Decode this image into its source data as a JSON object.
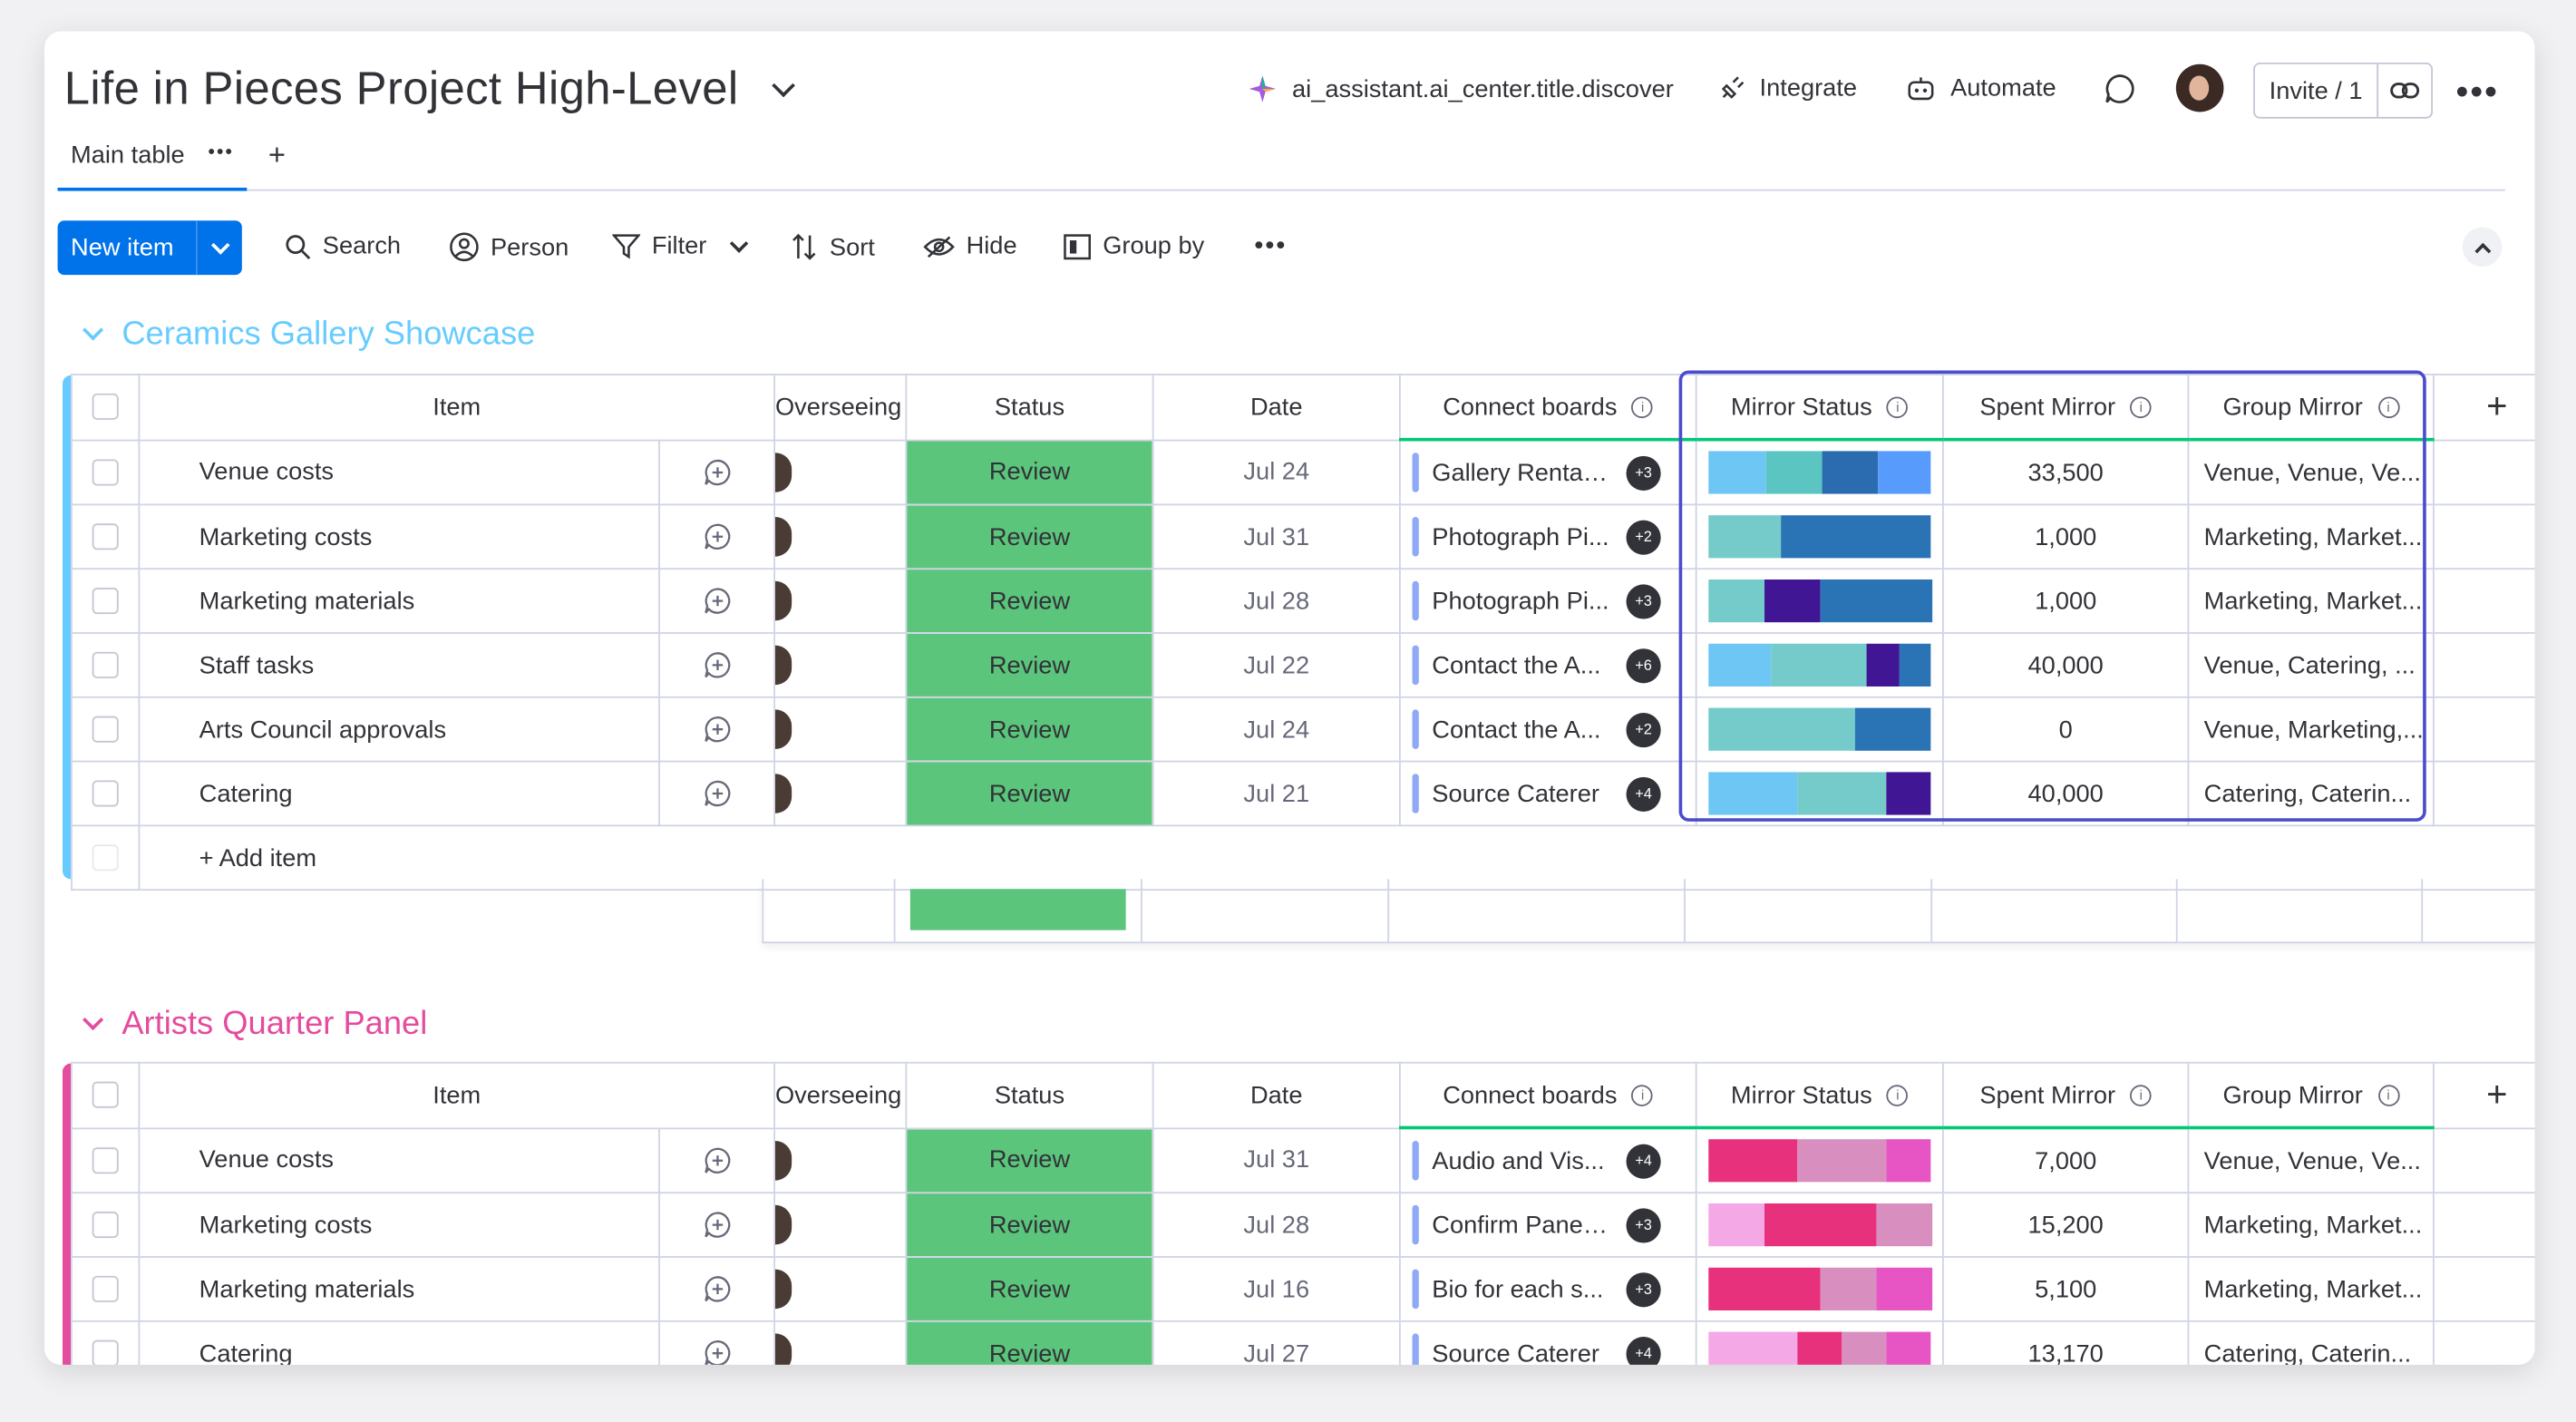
{
  "board": {
    "title": "Life in Pieces Project High-Level",
    "header_actions": {
      "ai": "ai_assistant.ai_center.title.discover",
      "integrate": "Integrate",
      "automate": "Automate",
      "invite": "Invite / 1"
    },
    "tabs": [
      {
        "label": "Main table"
      }
    ],
    "toolbar": {
      "new_item": "New item",
      "search": "Search",
      "person": "Person",
      "filter": "Filter",
      "sort": "Sort",
      "hide": "Hide",
      "group_by": "Group by"
    }
  },
  "columns": [
    "Item",
    "Overseeing",
    "Status",
    "Date",
    "Connect boards",
    "Mirror Status",
    "Spent Mirror",
    "Group Mirror"
  ],
  "groups": [
    {
      "title": "Ceramics Gallery Showcase",
      "color": "#66ccff",
      "add_item": "+ Add item",
      "rows": [
        {
          "item": "Venue costs",
          "status": "Review",
          "date": "Jul 24",
          "connect": "Gallery Rental ...",
          "badge": "+3",
          "spent": "33,500",
          "group": "Venue, Venue, Ve...",
          "mirror": [
            {
              "c": "#6ec6f5",
              "f": 0.26
            },
            {
              "c": "#5bc6c1",
              "f": 0.25
            },
            {
              "c": "#2b6cb0",
              "f": 0.25
            },
            {
              "c": "#579bfc",
              "f": 0.24
            }
          ]
        },
        {
          "item": "Marketing costs",
          "status": "Review",
          "date": "Jul 31",
          "connect": "Photograph Pi...",
          "badge": "+2",
          "spent": "1,000",
          "group": "Marketing, Market...",
          "mirror": [
            {
              "c": "#74cbc9",
              "f": 0.33
            },
            {
              "c": "#2a73b5",
              "f": 0.67
            }
          ]
        },
        {
          "item": "Marketing materials",
          "status": "Review",
          "date": "Jul 28",
          "connect": "Photograph Pi...",
          "badge": "+3",
          "spent": "1,000",
          "group": "Marketing, Market...",
          "mirror": [
            {
              "c": "#74cbc9",
              "f": 0.25
            },
            {
              "c": "#401694",
              "f": 0.25
            },
            {
              "c": "#2a73b5",
              "f": 0.5
            }
          ]
        },
        {
          "item": "Staff tasks",
          "status": "Review",
          "date": "Jul 22",
          "connect": "Contact the A...",
          "badge": "+6",
          "spent": "40,000",
          "group": "Venue, Catering, ...",
          "mirror": [
            {
              "c": "#6ec6f5",
              "f": 0.28
            },
            {
              "c": "#74cbc9",
              "f": 0.43
            },
            {
              "c": "#401694",
              "f": 0.15
            },
            {
              "c": "#2a73b5",
              "f": 0.14
            }
          ]
        },
        {
          "item": "Arts Council approvals",
          "status": "Review",
          "date": "Jul 24",
          "connect": "Contact the A...",
          "badge": "+2",
          "spent": "0",
          "group": "Venue, Marketing,...",
          "mirror": [
            {
              "c": "#74cbc9",
              "f": 0.66
            },
            {
              "c": "#2a73b5",
              "f": 0.34
            }
          ]
        },
        {
          "item": "Catering",
          "status": "Review",
          "date": "Jul 21",
          "connect": "Source Caterer",
          "badge": "+4",
          "spent": "40,000",
          "group": "Catering, Caterin...",
          "mirror": [
            {
              "c": "#6ec6f5",
              "f": 0.4
            },
            {
              "c": "#74cbc9",
              "f": 0.4
            },
            {
              "c": "#401694",
              "f": 0.2
            }
          ]
        }
      ]
    },
    {
      "title": "Artists Quarter Panel",
      "color": "#e44c9e",
      "rows": [
        {
          "item": "Venue costs",
          "status": "Review",
          "date": "Jul 31",
          "connect": "Audio and Vis...",
          "badge": "+4",
          "spent": "7,000",
          "group": "Venue, Venue, Ve...",
          "mirror": [
            {
              "c": "#e8317c",
              "f": 0.4
            },
            {
              "c": "#d88fc0",
              "f": 0.4
            },
            {
              "c": "#e755c4",
              "f": 0.2
            }
          ]
        },
        {
          "item": "Marketing costs",
          "status": "Review",
          "date": "Jul 28",
          "connect": "Confirm Panel ...",
          "badge": "+3",
          "spent": "15,200",
          "group": "Marketing, Market...",
          "mirror": [
            {
              "c": "#f5a8e6",
              "f": 0.25
            },
            {
              "c": "#e8317c",
              "f": 0.5
            },
            {
              "c": "#d88fc0",
              "f": 0.25
            }
          ]
        },
        {
          "item": "Marketing materials",
          "status": "Review",
          "date": "Jul 16",
          "connect": "Bio for each s...",
          "badge": "+3",
          "spent": "5,100",
          "group": "Marketing, Market...",
          "mirror": [
            {
              "c": "#e8317c",
              "f": 0.5
            },
            {
              "c": "#d88fc0",
              "f": 0.25
            },
            {
              "c": "#e755c4",
              "f": 0.25
            }
          ]
        },
        {
          "item": "Catering",
          "status": "Review",
          "date": "Jul 27",
          "connect": "Source Caterer",
          "badge": "+4",
          "spent": "13,170",
          "group": "Catering, Caterin...",
          "mirror": [
            {
              "c": "#f5a8e6",
              "f": 0.4
            },
            {
              "c": "#e8317c",
              "f": 0.2
            },
            {
              "c": "#d88fc0",
              "f": 0.2
            },
            {
              "c": "#e755c4",
              "f": 0.2
            }
          ]
        }
      ]
    }
  ]
}
